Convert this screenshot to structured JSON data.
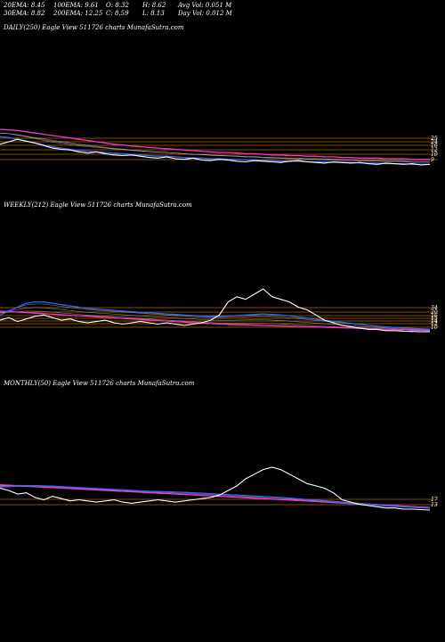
{
  "header": {
    "ema20": "20EMA: 8.45",
    "ema30": "30EMA: 8.82",
    "ema100": "100EMA: 9.61",
    "ema200": "200EMA: 12.25",
    "open": "O: 8.32",
    "close": "C: 8.59",
    "high": "H: 8.62",
    "low": "L: 8.13",
    "avg_vol": "Avg Vol: 0.051 M",
    "day_vol": "Day Vol: 0.012 M"
  },
  "panels": [
    {
      "title": "DAILY(250) Eagle  View  511726  charts MunafaSutra.com",
      "right_labels": [
        "25",
        "24",
        "16",
        "12",
        "10",
        "9"
      ]
    },
    {
      "title": "WEEKLY(212) Eagle  View  511726  charts MunafaSutra.com",
      "right_labels": [
        "34",
        "20",
        "16",
        "15",
        "14",
        "12",
        "10"
      ]
    },
    {
      "title": "MONTHLY(50) Eagle  View  511726  charts MunafaSutra.com",
      "right_labels": [
        "17",
        "13"
      ]
    }
  ],
  "colors": {
    "price": "#ffffff",
    "ema_pink": "#ff33cc",
    "ema_blue": "#3366ff",
    "levels": "#cc7a00",
    "ema_thin": "#c8c8c8"
  },
  "chart_data": [
    {
      "type": "line",
      "series": [
        {
          "values": [
            11.8,
            12.2,
            12.6,
            12.3,
            12.0,
            11.6,
            11.2,
            11.0,
            10.9,
            10.6,
            10.4,
            10.6,
            10.3,
            10.1,
            10.0,
            10.1,
            9.9,
            9.7,
            9.6,
            9.8,
            9.5,
            9.4,
            9.6,
            9.3,
            9.2,
            9.4,
            9.3,
            9.1,
            9.0,
            9.2,
            9.1,
            9.0,
            8.9,
            9.1,
            9.2,
            9.0,
            8.9,
            8.8,
            9.0,
            8.9,
            8.8,
            8.9,
            8.7,
            8.6,
            8.8,
            8.7,
            8.6,
            8.7,
            8.5,
            8.6
          ]
        },
        {
          "values": [
            13.0,
            12.9,
            12.6,
            12.3,
            12.0,
            11.7,
            11.4,
            11.2,
            11.0,
            10.8,
            10.7,
            10.6,
            10.5,
            10.4,
            10.3,
            10.2,
            10.1,
            10.0,
            9.9,
            9.9,
            9.8,
            9.7,
            9.6,
            9.6,
            9.5,
            9.5,
            9.4,
            9.4,
            9.3,
            9.3,
            9.2,
            9.2,
            9.1,
            9.1,
            9.1,
            9.0,
            9.0,
            9.0,
            8.9,
            8.9,
            8.9,
            8.8,
            8.8,
            8.8,
            8.7,
            8.7,
            8.7,
            8.6,
            8.6,
            8.6
          ]
        },
        {
          "values": [
            14.2,
            14.1,
            14.0,
            13.8,
            13.6,
            13.4,
            13.2,
            13.0,
            12.8,
            12.6,
            12.4,
            12.2,
            12.0,
            11.8,
            11.7,
            11.5,
            11.4,
            11.3,
            11.2,
            11.1,
            11.0,
            10.9,
            10.8,
            10.7,
            10.6,
            10.5,
            10.5,
            10.4,
            10.3,
            10.3,
            10.2,
            10.1,
            10.1,
            10.0,
            10.0,
            9.9,
            9.9,
            9.8,
            9.8,
            9.7,
            9.7,
            9.6,
            9.6,
            9.6,
            9.5,
            9.5,
            9.5,
            9.4,
            9.4,
            9.4
          ]
        }
      ]
    },
    {
      "type": "line",
      "series": [
        {
          "values": [
            13.0,
            14.0,
            12.5,
            13.5,
            14.5,
            15.0,
            14.0,
            13.0,
            13.5,
            12.5,
            12.0,
            12.5,
            13.0,
            12.0,
            11.5,
            12.0,
            12.5,
            12.0,
            11.5,
            12.0,
            11.5,
            11.0,
            11.5,
            12.0,
            13.0,
            15.0,
            20.0,
            22.0,
            21.0,
            23.0,
            25.0,
            22.0,
            21.0,
            20.0,
            18.0,
            17.0,
            15.0,
            13.0,
            12.0,
            11.0,
            10.5,
            10.0,
            9.5,
            9.5,
            9.0,
            9.0,
            8.8,
            8.7,
            8.6,
            8.6
          ]
        },
        {
          "values": [
            15.0,
            16.5,
            18.0,
            19.5,
            20.0,
            20.0,
            19.5,
            19.0,
            18.5,
            18.0,
            17.5,
            17.2,
            17.0,
            16.8,
            16.5,
            16.3,
            16.0,
            15.8,
            15.6,
            15.4,
            15.2,
            15.0,
            14.8,
            14.6,
            14.5,
            14.5,
            14.6,
            14.8,
            15.0,
            15.2,
            15.4,
            15.2,
            15.0,
            14.6,
            14.2,
            13.8,
            13.4,
            13.0,
            12.6,
            12.2,
            11.8,
            11.4,
            11.0,
            10.7,
            10.4,
            10.2,
            10.0,
            9.8,
            9.6,
            9.5
          ]
        },
        {
          "values": [
            16.5,
            16.3,
            16.1,
            15.9,
            15.7,
            15.5,
            15.3,
            15.1,
            14.9,
            14.7,
            14.5,
            14.3,
            14.1,
            13.9,
            13.7,
            13.5,
            13.3,
            13.1,
            12.9,
            12.7,
            12.5,
            12.3,
            12.1,
            11.9,
            11.7,
            11.5,
            11.4,
            11.3,
            11.2,
            11.1,
            11.0,
            10.9,
            10.8,
            10.7,
            10.6,
            10.5,
            10.4,
            10.3,
            10.2,
            10.1,
            10.0,
            9.9,
            9.8,
            9.7,
            9.6,
            9.5,
            9.4,
            9.3,
            9.2,
            9.1
          ]
        }
      ]
    },
    {
      "type": "line",
      "series": [
        {
          "values": [
            18.0,
            17.0,
            15.5,
            16.0,
            14.0,
            13.0,
            14.5,
            13.5,
            12.5,
            13.0,
            12.5,
            12.0,
            12.5,
            13.0,
            12.0,
            11.5,
            12.0,
            12.5,
            13.0,
            12.5,
            12.0,
            12.5,
            13.0,
            13.5,
            14.0,
            15.0,
            17.0,
            19.0,
            22.0,
            24.0,
            26.0,
            27.0,
            26.0,
            24.0,
            22.0,
            20.0,
            19.0,
            18.0,
            16.0,
            13.0,
            12.0,
            11.0,
            10.5,
            10.0,
            9.5,
            9.5,
            9.0,
            9.0,
            8.8,
            8.6
          ]
        },
        {
          "values": [
            18.5,
            18.7,
            18.9,
            19.0,
            19.0,
            18.9,
            18.8,
            18.6,
            18.4,
            18.2,
            18.0,
            17.8,
            17.6,
            17.4,
            17.2,
            17.0,
            16.8,
            16.6,
            16.5,
            16.4,
            16.3,
            16.2,
            16.0,
            15.8,
            15.6,
            15.4,
            15.2,
            15.0,
            14.8,
            14.6,
            14.4,
            14.2,
            14.0,
            13.7,
            13.4,
            13.1,
            12.8,
            12.5,
            12.2,
            11.9,
            11.6,
            11.3,
            11.0,
            10.7,
            10.4,
            10.2,
            10.0,
            9.8,
            9.6,
            9.5
          ]
        },
        {
          "values": [
            19.5,
            19.3,
            19.1,
            18.9,
            18.7,
            18.5,
            18.3,
            18.1,
            17.9,
            17.7,
            17.5,
            17.3,
            17.1,
            16.9,
            16.7,
            16.5,
            16.3,
            16.1,
            15.9,
            15.7,
            15.5,
            15.3,
            15.1,
            14.9,
            14.7,
            14.5,
            14.3,
            14.1,
            13.9,
            13.7,
            13.5,
            13.3,
            13.1,
            12.9,
            12.7,
            12.5,
            12.3,
            12.1,
            11.9,
            11.7,
            11.5,
            11.3,
            11.1,
            10.9,
            10.7,
            10.5,
            10.3,
            10.1,
            9.9,
            9.7
          ]
        }
      ]
    }
  ]
}
